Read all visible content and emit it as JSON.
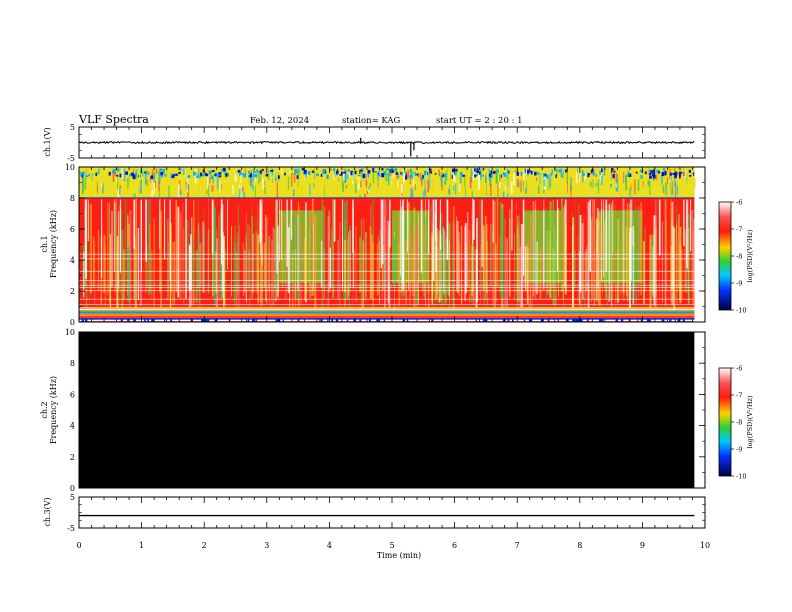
{
  "header": {
    "title": "VLF Spectra",
    "date": "Feb. 12, 2024",
    "station": "station= KAG",
    "start": "start  UT =   2 : 20 : 1"
  },
  "chart_data": [
    {
      "type": "line",
      "name": "ch1-waveform",
      "ylabel": "ch.1(V)",
      "ylim": [
        -5,
        5
      ],
      "yticks": [
        "5",
        "-5"
      ],
      "xlim": [
        0,
        10
      ],
      "baseline": 0,
      "spikes": [
        {
          "x": 4.5,
          "y": 1.5
        },
        {
          "x": 5.3,
          "y": -4.5
        },
        {
          "x": 5.35,
          "y": -2.5
        }
      ]
    },
    {
      "type": "heatmap",
      "name": "ch1-spectrogram",
      "ylabel_line1": "ch.1",
      "ylabel_line2": "Frequency (kHz)",
      "ylim": [
        0,
        10
      ],
      "yticks": [
        "0",
        "2",
        "4",
        "6",
        "8",
        "10"
      ],
      "xlim": [
        0,
        9.83
      ],
      "colorbar": {
        "label": "log(PSD)(V²/Hz)",
        "range": [
          -10,
          -6
        ],
        "ticks": [
          "-6",
          "-7",
          "-8",
          "-9",
          "-10"
        ],
        "colors": [
          "#ffffff",
          "#ff2a1a",
          "#ffe600",
          "#20d020",
          "#00c8ff",
          "#0000cc",
          "#000030"
        ]
      },
      "bands_khz": {
        "upper_band": [
          8,
          10
        ],
        "noisy_bulk": [
          0,
          8
        ],
        "low_lines": [
          0,
          1
        ]
      },
      "quiet_intervals_min": [
        [
          3.2,
          3.9
        ],
        [
          5.0,
          5.6
        ],
        [
          7.1,
          7.7
        ],
        [
          8.3,
          9.0
        ]
      ]
    },
    {
      "type": "heatmap",
      "name": "ch2-spectrogram",
      "ylabel_line1": "ch.2",
      "ylabel_line2": "Frequency (kHz)",
      "ylim": [
        0,
        10
      ],
      "yticks": [
        "0",
        "2",
        "4",
        "6",
        "8",
        "10"
      ],
      "xlim": [
        0,
        9.83
      ],
      "fill": "#000000",
      "colorbar": {
        "label": "log(PSD)(V²/Hz)",
        "range": [
          -10,
          -6
        ],
        "ticks": [
          "-6",
          "-7",
          "-8",
          "-9",
          "-10"
        ]
      }
    },
    {
      "type": "line",
      "name": "ch3-waveform",
      "ylabel": "ch.3(V)",
      "ylim": [
        -5,
        5
      ],
      "yticks": [
        "5",
        "-5"
      ],
      "xlim": [
        0,
        10
      ],
      "value": -1.0
    }
  ],
  "x_axis": {
    "label": "Time (min)",
    "range": [
      0,
      10
    ],
    "ticks": [
      "0",
      "1",
      "2",
      "3",
      "4",
      "5",
      "6",
      "7",
      "8",
      "9",
      "10"
    ]
  }
}
